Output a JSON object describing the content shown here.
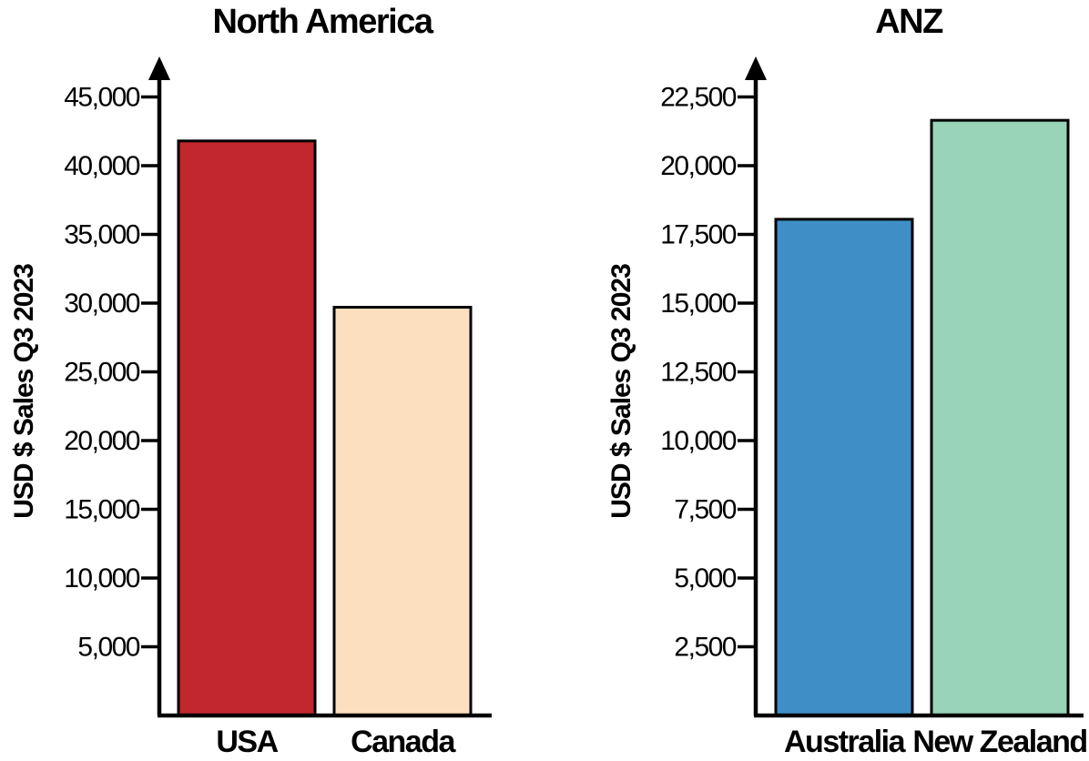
{
  "chart_data": [
    {
      "type": "bar",
      "title": "North America",
      "ylabel": "USD $ Sales Q3 2023",
      "xlabel": "",
      "categories": [
        "USA",
        "Canada"
      ],
      "values": [
        41800,
        29700
      ],
      "colors": [
        "#c1272d",
        "#fcdfbe"
      ],
      "ylim": [
        0,
        47500
      ],
      "yticks": [
        5000,
        10000,
        15000,
        20000,
        25000,
        30000,
        35000,
        40000,
        45000
      ],
      "ytick_labels": [
        "5,000",
        "10,000",
        "15,000",
        "20,000",
        "25,000",
        "30,000",
        "35,000",
        "40,000",
        "45,000"
      ],
      "grid": false,
      "legend": "none"
    },
    {
      "type": "bar",
      "title": "ANZ",
      "ylabel": "USD $ Sales Q3 2023",
      "xlabel": "",
      "categories": [
        "Australia",
        "New Zealand"
      ],
      "values": [
        18050,
        21650
      ],
      "colors": [
        "#3f8fc6",
        "#99d3b8"
      ],
      "ylim": [
        0,
        23750
      ],
      "yticks": [
        2500,
        5000,
        7500,
        10000,
        12500,
        15000,
        17500,
        20000,
        22500
      ],
      "ytick_labels": [
        "2,500",
        "5,000",
        "7,500",
        "10,000",
        "12,500",
        "15,000",
        "17,500",
        "20,000",
        "22,500"
      ],
      "grid": false,
      "legend": "none"
    }
  ]
}
